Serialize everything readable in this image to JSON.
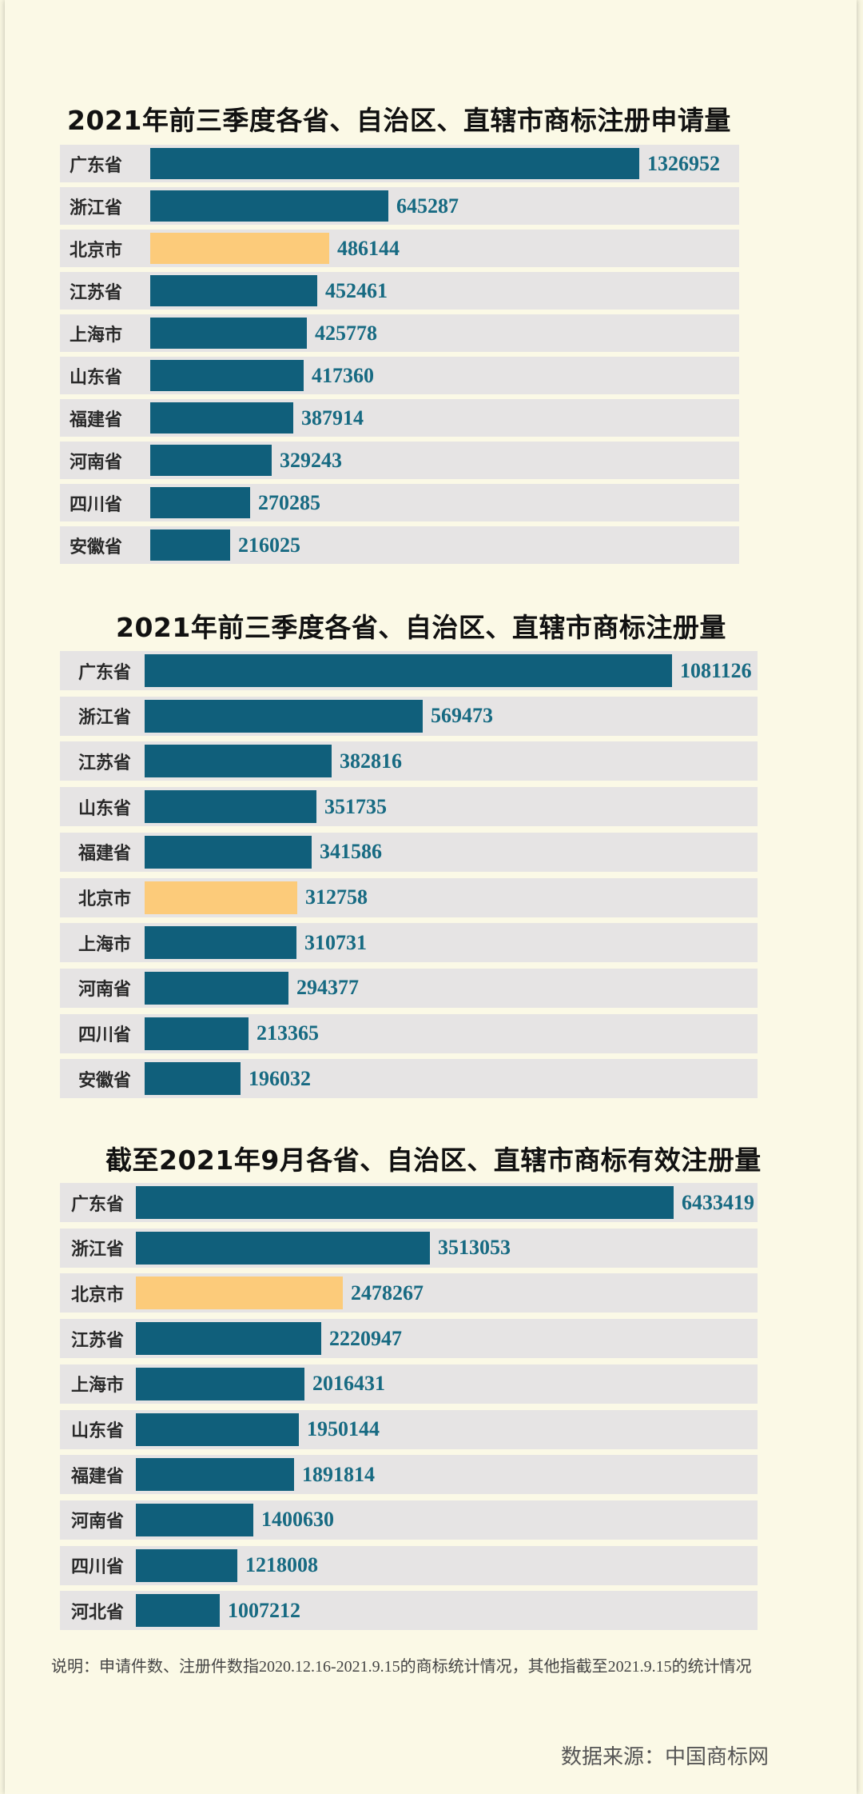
{
  "colors": {
    "bar": "#105f7b",
    "highlight": "#fccb7a",
    "value_text": "#176a82",
    "row_bg": "#e6e4e4"
  },
  "chart_data": [
    {
      "type": "bar",
      "orientation": "horizontal",
      "title": "2021年前三季度各省、自治区、直辖市商标注册申请量",
      "categories": [
        "广东省",
        "浙江省",
        "北京市",
        "江苏省",
        "上海市",
        "山东省",
        "福建省",
        "河南省",
        "四川省",
        "安徽省"
      ],
      "values": [
        1326952,
        645287,
        486144,
        452461,
        425778,
        417360,
        387914,
        329243,
        270285,
        216025
      ],
      "highlight": "北京市"
    },
    {
      "type": "bar",
      "orientation": "horizontal",
      "title": "2021年前三季度各省、自治区、直辖市商标注册量",
      "categories": [
        "广东省",
        "浙江省",
        "江苏省",
        "山东省",
        "福建省",
        "北京市",
        "上海市",
        "河南省",
        "四川省",
        "安徽省"
      ],
      "values": [
        1081126,
        569473,
        382816,
        351735,
        341586,
        312758,
        310731,
        294377,
        213365,
        196032
      ],
      "highlight": "北京市"
    },
    {
      "type": "bar",
      "orientation": "horizontal",
      "title": "截至2021年9月各省、自治区、直辖市商标有效注册量",
      "categories": [
        "广东省",
        "浙江省",
        "北京市",
        "江苏省",
        "上海市",
        "山东省",
        "福建省",
        "河南省",
        "四川省",
        "河北省"
      ],
      "values": [
        6433419,
        3513053,
        2478267,
        2220947,
        2016431,
        1950144,
        1891814,
        1400630,
        1218008,
        1007212
      ],
      "highlight": "北京市"
    }
  ],
  "footnote": "说明：申请件数、注册件数指2020.12.16-2021.9.15的商标统计情况，其他指截至2021.9.15的统计情况",
  "source": "数据来源：中国商标网"
}
